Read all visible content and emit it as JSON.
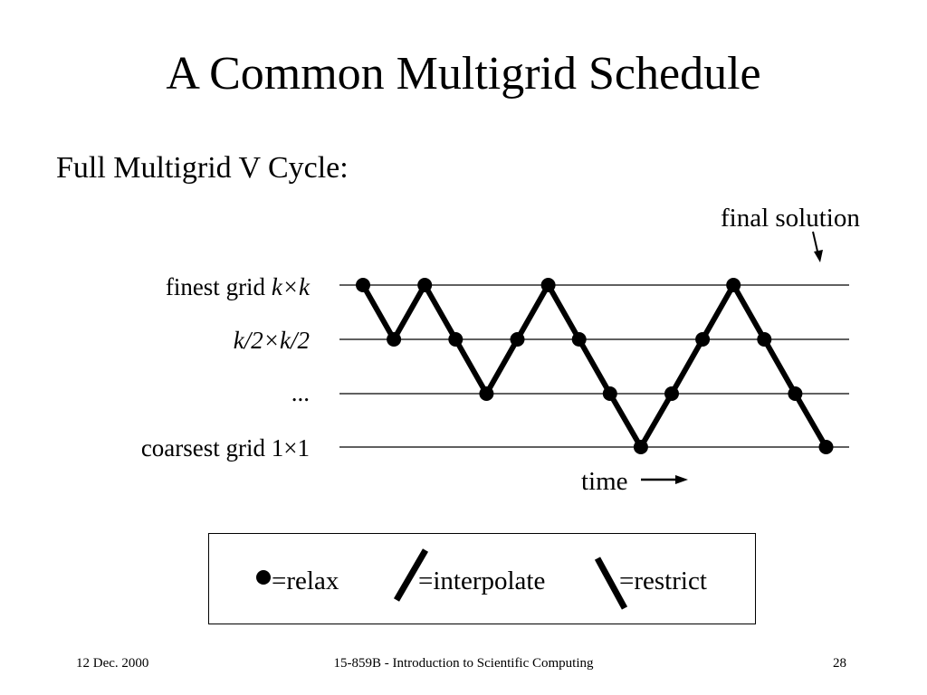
{
  "slide": {
    "title": "A Common Multigrid Schedule",
    "subtitle": "Full Multigrid V Cycle:"
  },
  "diagram": {
    "levels": [
      {
        "label_plain": "finest grid ",
        "label_math": "k×k"
      },
      {
        "label_plain": "",
        "label_math": "k/2×k/2"
      },
      {
        "label_plain": "...",
        "label_math": ""
      },
      {
        "label_plain": "coarsest grid 1×1",
        "label_math": ""
      }
    ],
    "schedule_levels": [
      3,
      2,
      3,
      2,
      1,
      2,
      3,
      2,
      1,
      0,
      1,
      2,
      3,
      2,
      1,
      0
    ],
    "final_solution_label": "final solution",
    "time_label": "time",
    "line_color": "#000000"
  },
  "legend": {
    "relax": "=relax",
    "interpolate": "=interpolate",
    "restrict": "=restrict"
  },
  "footer": {
    "date": "12 Dec. 2000",
    "course": "15-859B - Introduction to Scientific Computing",
    "page": "28"
  }
}
